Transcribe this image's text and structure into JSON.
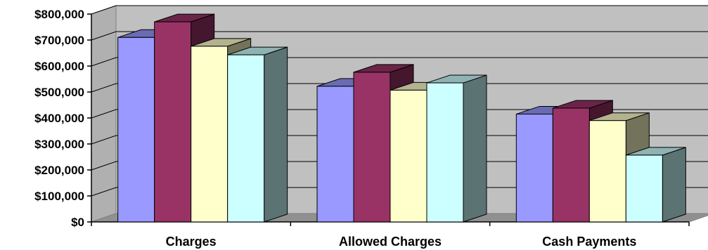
{
  "chart_data": {
    "type": "bar",
    "categories": [
      "Charges",
      "Allowed Charges",
      "Cash Payments"
    ],
    "series": [
      {
        "values": [
          710000,
          522000,
          415000
        ],
        "color": "#9999ff"
      },
      {
        "values": [
          770000,
          576000,
          438000
        ],
        "color": "#993366"
      },
      {
        "values": [
          676000,
          507000,
          390000
        ],
        "color": "#ffffcc"
      },
      {
        "values": [
          643000,
          535000,
          257000
        ],
        "color": "#ccffff"
      }
    ],
    "yticks": [
      "$0",
      "$100,000",
      "$200,000",
      "$300,000",
      "$400,000",
      "$500,000",
      "$600,000",
      "$700,000",
      "$800,000"
    ],
    "ylim": [
      0,
      800000
    ],
    "title": "",
    "xlabel": "",
    "ylabel": "",
    "grid": true,
    "legend": "none",
    "style": "3d-clustered-column",
    "wall_color": "#c0c0c0"
  }
}
